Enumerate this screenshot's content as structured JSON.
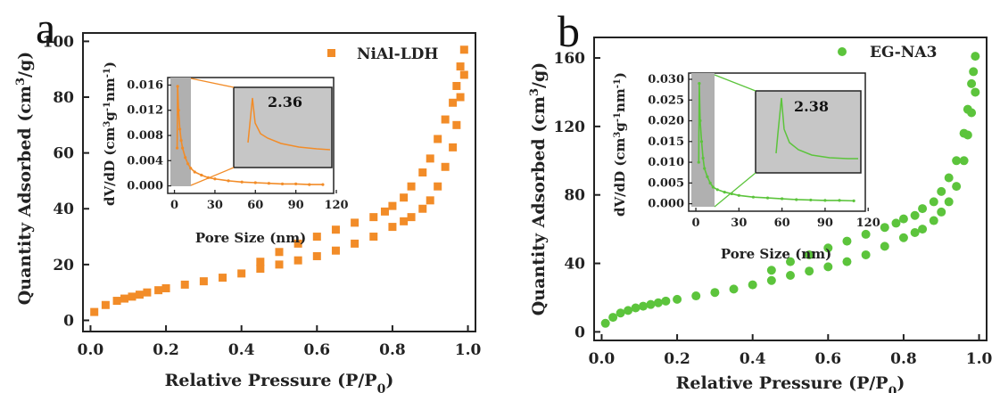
{
  "chart_data": [
    {
      "panel_label": "a",
      "type": "scatter",
      "legend": "NiAl-LDH",
      "legend_position": "top-right",
      "color": "#f28c28",
      "marker": "square",
      "xlabel": "Relative Pressure (P/P0)",
      "ylabel": "Quantity Adsorbed (cm3/g)",
      "xlim": [
        -0.02,
        1.02
      ],
      "ylim": [
        -4,
        103
      ],
      "xticks": [
        "0.0",
        "0.2",
        "0.4",
        "0.6",
        "0.8",
        "1.0"
      ],
      "yticks": [
        "0",
        "20",
        "40",
        "60",
        "80",
        "100"
      ],
      "adsorption": {
        "x": [
          0.01,
          0.04,
          0.07,
          0.09,
          0.11,
          0.13,
          0.15,
          0.18,
          0.2,
          0.25,
          0.3,
          0.35,
          0.4,
          0.45,
          0.5,
          0.55,
          0.6,
          0.65,
          0.7,
          0.75,
          0.8,
          0.83,
          0.85,
          0.88,
          0.9,
          0.92,
          0.94,
          0.96,
          0.97,
          0.98,
          0.99
        ],
        "y": [
          3,
          5.5,
          7,
          7.8,
          8.5,
          9.2,
          10,
          10.8,
          11.5,
          12.8,
          14,
          15.3,
          16.8,
          18.5,
          20,
          21.5,
          23,
          25,
          27.5,
          30,
          33.5,
          35.5,
          37,
          40,
          43,
          48,
          55,
          62,
          70,
          80,
          88
        ]
      },
      "desorption": {
        "x": [
          0.99,
          0.98,
          0.97,
          0.96,
          0.94,
          0.92,
          0.9,
          0.88,
          0.85,
          0.83,
          0.8,
          0.78,
          0.75,
          0.7,
          0.65,
          0.6,
          0.55,
          0.5,
          0.45
        ],
        "y": [
          97,
          91,
          84,
          78,
          72,
          65,
          58,
          53,
          48,
          44,
          41,
          39,
          37,
          35,
          32.5,
          30,
          27.5,
          24.5,
          21
        ]
      },
      "inset": {
        "xlabel": "Pore Size (nm)",
        "ylabel": "dV/dD (cm3g-1nm-1)",
        "xlim": [
          -5,
          118
        ],
        "ylim": [
          -0.0012,
          0.0172
        ],
        "xticks": [
          "0",
          "30",
          "60",
          "90",
          "120"
        ],
        "yticks": [
          "0.000",
          "0.004",
          "0.008",
          "0.012",
          "0.016"
        ],
        "peak_label": "2.36",
        "x": [
          2,
          2.36,
          3,
          4,
          5,
          6,
          8,
          10,
          12,
          15,
          20,
          25,
          30,
          40,
          50,
          60,
          70,
          80,
          90,
          100,
          110
        ],
        "y": [
          0.006,
          0.0158,
          0.012,
          0.009,
          0.0072,
          0.006,
          0.0045,
          0.0035,
          0.0028,
          0.0022,
          0.0017,
          0.0013,
          0.0011,
          0.0008,
          0.0006,
          0.0005,
          0.0004,
          0.0003,
          0.0003,
          0.0002,
          0.0002
        ]
      }
    },
    {
      "panel_label": "b",
      "type": "scatter",
      "legend": "EG-NA3",
      "legend_position": "top-right",
      "color": "#5cc43c",
      "marker": "circle",
      "xlabel": "Relative Pressure (P/P0)",
      "ylabel": "Quantity Adsorbed (cm3/g)",
      "xlim": [
        -0.02,
        1.02
      ],
      "ylim": [
        -5,
        172
      ],
      "xticks": [
        "0.0",
        "0.2",
        "0.4",
        "0.6",
        "0.8",
        "1.0"
      ],
      "yticks": [
        "0",
        "40",
        "80",
        "120",
        "160"
      ],
      "adsorption": {
        "x": [
          0.01,
          0.03,
          0.05,
          0.07,
          0.09,
          0.11,
          0.13,
          0.15,
          0.17,
          0.2,
          0.25,
          0.3,
          0.35,
          0.4,
          0.45,
          0.5,
          0.55,
          0.6,
          0.65,
          0.7,
          0.75,
          0.8,
          0.83,
          0.85,
          0.88,
          0.9,
          0.92,
          0.94,
          0.96,
          0.97,
          0.98,
          0.99
        ],
        "y": [
          5,
          8.5,
          11,
          12.5,
          14,
          15,
          16,
          17,
          18,
          19,
          21,
          23,
          25,
          27.5,
          30,
          33,
          35.5,
          38,
          41,
          45,
          50,
          55,
          58,
          60,
          65,
          70,
          76,
          85,
          100,
          115,
          128,
          140
        ]
      },
      "desorption": {
        "x": [
          0.99,
          0.985,
          0.98,
          0.97,
          0.96,
          0.94,
          0.92,
          0.9,
          0.88,
          0.85,
          0.83,
          0.8,
          0.78,
          0.75,
          0.7,
          0.65,
          0.6,
          0.55,
          0.5,
          0.45
        ],
        "y": [
          161,
          152,
          145,
          130,
          116,
          100,
          90,
          82,
          76,
          72,
          68,
          66,
          63.5,
          61,
          57,
          53,
          49,
          45,
          41,
          36
        ]
      },
      "inset": {
        "xlabel": "Pore Size (nm)",
        "ylabel": "dV/dD (cm3g-1nm-1)",
        "xlim": [
          -5,
          118
        ],
        "ylim": [
          -0.0018,
          0.0315
        ],
        "xticks": [
          "0",
          "30",
          "60",
          "90",
          "120"
        ],
        "yticks": [
          "0.000",
          "0.005",
          "0.010",
          "0.015",
          "0.020",
          "0.025",
          "0.030"
        ],
        "peak_label": "2.38",
        "x": [
          2,
          2.38,
          3,
          4,
          5,
          6,
          8,
          10,
          12,
          15,
          20,
          25,
          30,
          40,
          50,
          60,
          70,
          80,
          90,
          100,
          110
        ],
        "y": [
          0.01,
          0.029,
          0.02,
          0.015,
          0.011,
          0.0085,
          0.0065,
          0.005,
          0.004,
          0.0034,
          0.0028,
          0.0024,
          0.002,
          0.0016,
          0.0014,
          0.0012,
          0.001,
          0.0009,
          0.0008,
          0.0008,
          0.0007
        ]
      }
    }
  ]
}
